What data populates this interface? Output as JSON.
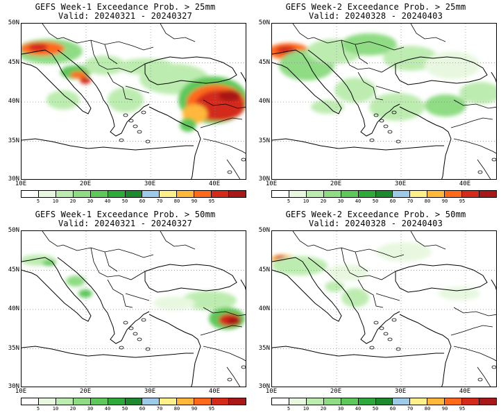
{
  "panels": [
    {
      "title_line1": "GEFS Week-1 Exceedance Prob. > 25mm",
      "title_line2": "Valid: 20240321 - 20240327"
    },
    {
      "title_line1": "GEFS Week-2 Exceedance Prob. > 25mm",
      "title_line2": "Valid: 20240328 - 20240403"
    },
    {
      "title_line1": "GEFS Week-1 Exceedance Prob. > 50mm",
      "title_line2": "Valid: 20240321 - 20240327"
    },
    {
      "title_line1": "GEFS Week-2 Exceedance Prob. > 50mm",
      "title_line2": "Valid: 20240328 - 20240403"
    }
  ],
  "lat_labels": [
    "50N",
    "45N",
    "40N",
    "35N",
    "30N"
  ],
  "lon_labels": [
    "10E",
    "20E",
    "30E",
    "40E"
  ],
  "colorbar": {
    "ticks": [
      "5",
      "10",
      "20",
      "30",
      "40",
      "50",
      "60",
      "70",
      "80",
      "90",
      "95"
    ],
    "colors": [
      "#ffffff",
      "#e8f8e0",
      "#bdecb0",
      "#8fdc84",
      "#5ec85a",
      "#2eaa3a",
      "#1e8a2e",
      "#9ecae8",
      "#fff08a",
      "#ffb83a",
      "#ff6a1a",
      "#d42a1a",
      "#a81818"
    ]
  }
}
